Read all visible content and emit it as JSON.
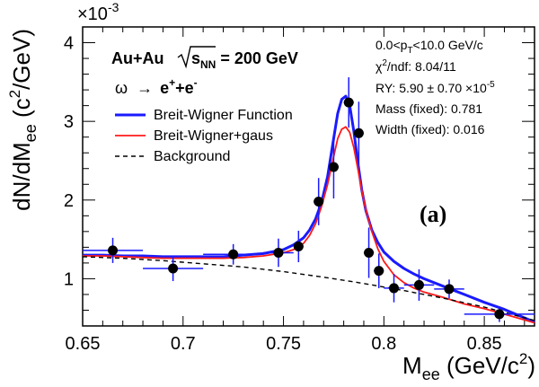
{
  "chart_data": {
    "type": "scatter",
    "x_label": {
      "main": "M",
      "sub": "ee",
      "tail": " (GeV/c",
      "sup": "2",
      "end": ")"
    },
    "y_label": {
      "main": "dN/dM",
      "sub": "ee",
      "tail": " (c",
      "sup": "2",
      "end": "/GeV)"
    },
    "y_multiplier": {
      "base": "×10",
      "exp": "-3"
    },
    "xlim": [
      0.65,
      0.875
    ],
    "ylim": [
      0.4,
      4.2
    ],
    "x_ticks": [
      0.65,
      0.7,
      0.75,
      0.8,
      0.85
    ],
    "x_tick_labels": [
      "0.65",
      "0.7",
      "0.75",
      "0.8",
      "0.85"
    ],
    "y_ticks": [
      1,
      2,
      3,
      4
    ],
    "y_tick_labels": [
      "1",
      "2",
      "3",
      "4"
    ],
    "headline": {
      "system": "Au+Au",
      "energy_label": "s",
      "energy_sub": "NN",
      "energy_value": " = 200 GeV"
    },
    "reaction": {
      "particle": "ω",
      "arrow": "→",
      "products": "e",
      "sup1": "+",
      "plus": "+e",
      "sup2": "-"
    },
    "stats": {
      "pt_prefix": "0.0<p",
      "pt_sub": "T",
      "pt_suffix": "<10.0 GeV/c",
      "chi2_prefix": "χ",
      "chi2_sup": "2",
      "chi2_suffix": "/ndf:  8.04/11",
      "ry_text": "RY:  5.90 ± 0.70 ×10",
      "ry_exp": "-5",
      "mass_text": "Mass (fixed):  0.781",
      "width_text": "Width (fixed):  0.016"
    },
    "panel_tag": "(a)",
    "series": [
      {
        "name": "Breit-Wigner Function",
        "color": "#1a1aff",
        "x": [
          0.65,
          0.66,
          0.67,
          0.68,
          0.69,
          0.7,
          0.71,
          0.72,
          0.73,
          0.74,
          0.75,
          0.755,
          0.76,
          0.763,
          0.766,
          0.769,
          0.772,
          0.775,
          0.777,
          0.779,
          0.781,
          0.783,
          0.785,
          0.787,
          0.789,
          0.791,
          0.794,
          0.797,
          0.8,
          0.805,
          0.81,
          0.815,
          0.82,
          0.83,
          0.84,
          0.85,
          0.86,
          0.875
        ],
        "y": [
          1.3,
          1.3,
          1.29,
          1.29,
          1.28,
          1.28,
          1.28,
          1.28,
          1.3,
          1.32,
          1.37,
          1.43,
          1.52,
          1.62,
          1.76,
          1.97,
          2.3,
          2.78,
          3.1,
          3.28,
          3.32,
          3.2,
          2.88,
          2.48,
          2.13,
          1.87,
          1.62,
          1.46,
          1.34,
          1.22,
          1.13,
          1.06,
          1.0,
          0.9,
          0.8,
          0.7,
          0.61,
          0.45
        ]
      },
      {
        "name": "Breit-Wigner+gaus",
        "color": "#ff1a1a",
        "x": [
          0.65,
          0.66,
          0.67,
          0.68,
          0.69,
          0.7,
          0.71,
          0.72,
          0.73,
          0.74,
          0.75,
          0.755,
          0.76,
          0.763,
          0.766,
          0.769,
          0.772,
          0.775,
          0.777,
          0.779,
          0.781,
          0.783,
          0.785,
          0.787,
          0.789,
          0.791,
          0.794,
          0.797,
          0.8,
          0.805,
          0.81,
          0.815,
          0.82,
          0.83,
          0.84,
          0.85,
          0.86,
          0.875
        ],
        "y": [
          1.29,
          1.29,
          1.28,
          1.27,
          1.26,
          1.26,
          1.26,
          1.26,
          1.27,
          1.29,
          1.33,
          1.37,
          1.45,
          1.55,
          1.7,
          1.92,
          2.2,
          2.55,
          2.78,
          2.9,
          2.93,
          2.86,
          2.67,
          2.4,
          2.12,
          1.88,
          1.6,
          1.38,
          1.22,
          1.05,
          0.95,
          0.88,
          0.83,
          0.76,
          0.68,
          0.62,
          0.55,
          0.44
        ]
      },
      {
        "name": "Background",
        "color": "#000000",
        "dashed": true,
        "x": [
          0.65,
          0.67,
          0.69,
          0.71,
          0.73,
          0.75,
          0.77,
          0.79,
          0.81,
          0.83,
          0.85,
          0.875
        ],
        "y": [
          1.28,
          1.26,
          1.23,
          1.19,
          1.15,
          1.09,
          1.02,
          0.94,
          0.85,
          0.75,
          0.64,
          0.47
        ]
      }
    ],
    "points": {
      "color": "#000000",
      "error_color": "#1a1aff",
      "x": [
        0.665,
        0.695,
        0.725,
        0.7475,
        0.7575,
        0.7675,
        0.775,
        0.7825,
        0.7875,
        0.7925,
        0.7975,
        0.805,
        0.8175,
        0.8325,
        0.8575
      ],
      "y": [
        1.36,
        1.13,
        1.31,
        1.33,
        1.41,
        1.98,
        2.42,
        3.24,
        2.85,
        1.33,
        1.1,
        0.88,
        0.92,
        0.87,
        0.55
      ],
      "xerr": [
        0.015,
        0.015,
        0.015,
        0.0075,
        0.0025,
        0.0025,
        0.0025,
        0.0025,
        0.0025,
        0.0025,
        0.0025,
        0.005,
        0.0075,
        0.0075,
        0.0175
      ],
      "yerr": [
        0.16,
        0.16,
        0.13,
        0.18,
        0.2,
        0.3,
        0.4,
        0.32,
        0.4,
        0.32,
        0.22,
        0.18,
        0.2,
        0.12,
        0.1
      ]
    }
  }
}
